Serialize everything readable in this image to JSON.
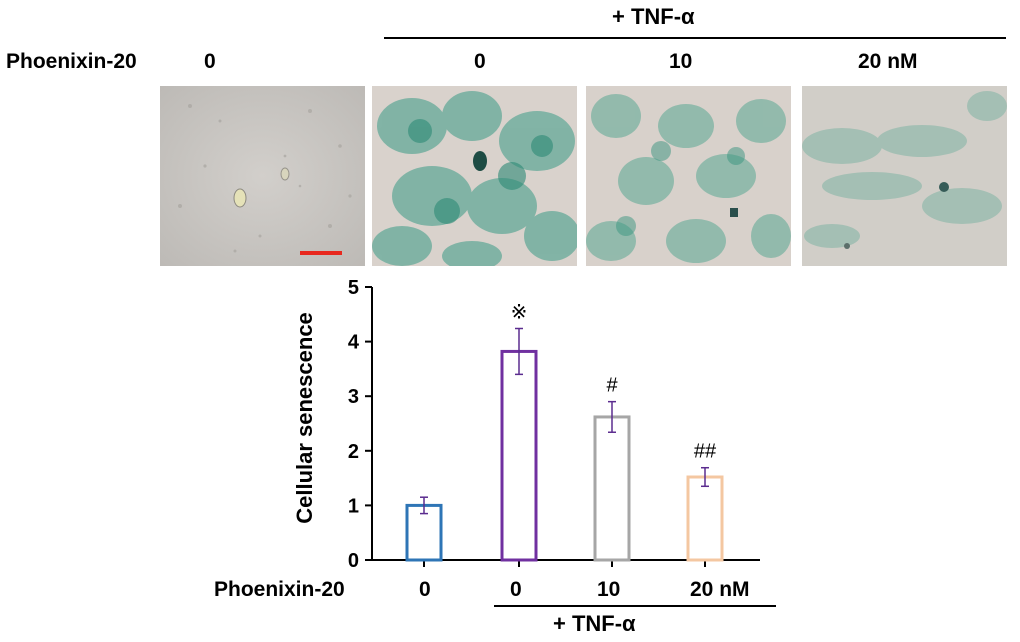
{
  "top_row": {
    "group_label": "+ TNF-α",
    "row_label": "Phoenixin-20",
    "doses": [
      "0",
      "0",
      "10",
      "20 nM"
    ]
  },
  "micrographs": [
    {
      "name": "control",
      "tint": "#c9c6c2",
      "stain": "none"
    },
    {
      "name": "tnf-alpha",
      "tint": "#d9d3cd",
      "stain": "#3b9b86"
    },
    {
      "name": "tnf-alpha-phnx-10",
      "tint": "#d6d0cb",
      "stain": "#4ea48e"
    },
    {
      "name": "tnf-alpha-phnx-20",
      "tint": "#cfccc6",
      "stain": "#6fae9c"
    }
  ],
  "scale_bar_color": "#e8281e",
  "chart_data": {
    "type": "bar",
    "categories": [
      "0",
      "0",
      "10",
      "20 nM"
    ],
    "values": [
      1.0,
      3.82,
      2.62,
      1.52
    ],
    "errors": [
      0.15,
      0.42,
      0.28,
      0.17
    ],
    "annotations": [
      "",
      "※",
      "#",
      "##"
    ],
    "bar_colors": [
      "#2e75b6",
      "#7030a0",
      "#a6a6a6",
      "#f4c7a1"
    ],
    "error_color": "#5b2c8f",
    "ylabel": "Cellular senescence",
    "ylim": [
      0,
      5
    ],
    "yticks": [
      0,
      1,
      2,
      3,
      4,
      5
    ],
    "xlabel_row": "Phoenixin-20",
    "group_label": "+ TNF-α",
    "grid": false
  }
}
